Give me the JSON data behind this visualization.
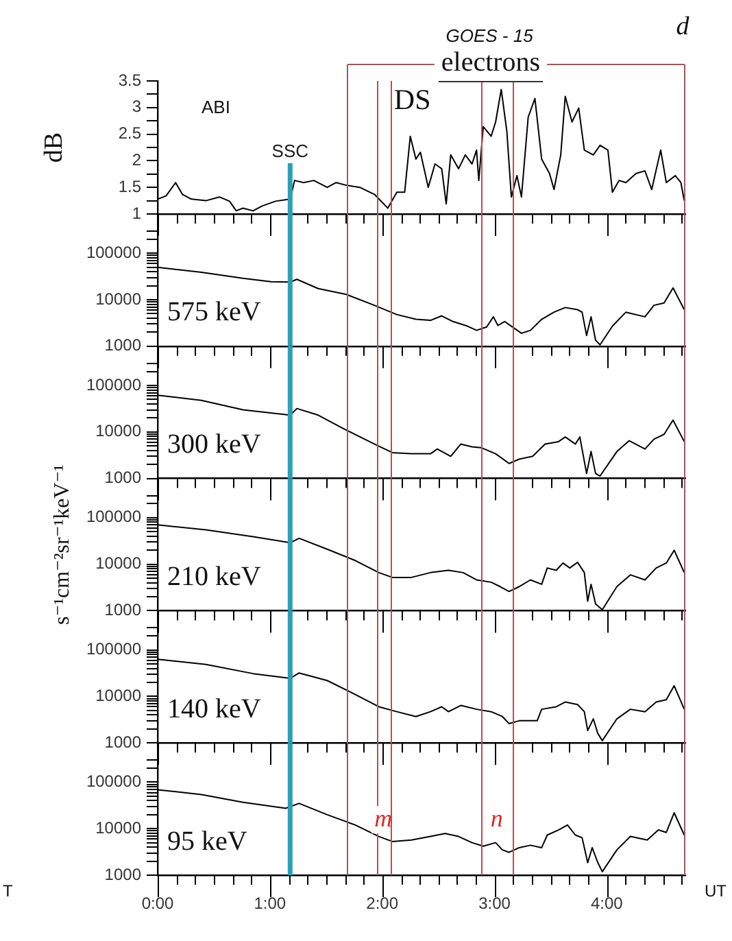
{
  "chart_data": [
    {
      "type": "line",
      "ylabel": "dB",
      "annotations": [
        "ABI",
        "GOES - 15",
        "electrons",
        "d"
      ],
      "color": "#000000",
      "tick_labels": "y",
      "x": [
        0,
        0.075,
        0.16,
        0.22,
        0.3,
        0.43,
        0.55,
        0.64,
        0.7,
        0.76,
        0.85,
        0.93,
        1.05,
        1.18,
        1.22,
        1.3,
        1.39,
        1.51,
        1.59,
        1.68,
        1.8,
        1.93,
        2.05,
        2.13,
        2.2,
        2.25,
        2.3,
        2.34,
        2.41,
        2.47,
        2.53,
        2.57,
        2.61,
        2.68,
        2.74,
        2.8,
        2.84,
        2.86,
        2.9,
        2.97,
        3.01,
        3.06,
        3.11,
        3.15,
        3.2,
        3.24,
        3.3,
        3.36,
        3.42,
        3.49,
        3.53,
        3.59,
        3.63,
        3.69,
        3.75,
        3.8,
        3.88,
        3.94,
        4.01,
        4.05,
        4.11,
        4.17,
        4.26,
        4.34,
        4.4,
        4.48,
        4.53,
        4.61,
        4.66,
        4.69
      ],
      "values": [
        1.28,
        1.34,
        1.59,
        1.37,
        1.28,
        1.25,
        1.32,
        1.24,
        1.06,
        1.11,
        1.06,
        1.15,
        1.24,
        1.28,
        1.63,
        1.59,
        1.63,
        1.5,
        1.59,
        1.54,
        1.5,
        1.37,
        1.11,
        1.41,
        1.41,
        2.46,
        2.03,
        2.16,
        1.5,
        1.94,
        1.85,
        1.19,
        2.11,
        1.85,
        2.11,
        1.94,
        2.2,
        1.63,
        2.64,
        2.46,
        2.73,
        3.34,
        2.55,
        1.32,
        1.72,
        1.32,
        2.82,
        3.17,
        2.03,
        1.76,
        1.46,
        2.11,
        3.21,
        2.73,
        2.99,
        2.2,
        2.11,
        2.29,
        2.2,
        1.41,
        1.63,
        1.59,
        1.76,
        1.81,
        1.46,
        2.2,
        1.59,
        1.72,
        1.59,
        1.25
      ],
      "xlim": [
        0,
        4.7
      ],
      "xticks": [
        {
          "value": 0,
          "label": null
        },
        {
          "value": 0.167,
          "label": null
        },
        {
          "value": 0.333,
          "label": null
        },
        {
          "value": 0.5,
          "label": null
        },
        {
          "value": 0.667,
          "label": null
        },
        {
          "value": 0.833,
          "label": null
        },
        {
          "value": 1,
          "label": null
        },
        {
          "value": 1.167,
          "label": null
        },
        {
          "value": 1.333,
          "label": null
        },
        {
          "value": 1.5,
          "label": null
        },
        {
          "value": 1.667,
          "label": null
        },
        {
          "value": 1.833,
          "label": null
        },
        {
          "value": 2,
          "label": null
        },
        {
          "value": 2.167,
          "label": null
        },
        {
          "value": 2.333,
          "label": null
        },
        {
          "value": 2.5,
          "label": null
        },
        {
          "value": 2.667,
          "label": null
        },
        {
          "value": 2.833,
          "label": null
        },
        {
          "value": 3,
          "label": null
        },
        {
          "value": 3.167,
          "label": null
        },
        {
          "value": 3.333,
          "label": null
        },
        {
          "value": 3.5,
          "label": null
        },
        {
          "value": 3.667,
          "label": null
        },
        {
          "value": 3.833,
          "label": null
        },
        {
          "value": 4,
          "label": null
        },
        {
          "value": 4.167,
          "label": null
        },
        {
          "value": 4.333,
          "label": null
        },
        {
          "value": 4.5,
          "label": null
        },
        {
          "value": 4.667,
          "label": null
        }
      ],
      "ylim": [
        1,
        3.5
      ],
      "yticks": [
        1,
        {
          "value": 1.25,
          "label": null
        },
        1.5,
        {
          "value": 1.75,
          "label": null
        },
        2,
        {
          "value": 2.25,
          "label": null
        },
        2.5,
        {
          "value": 2.75,
          "label": null
        },
        3,
        {
          "value": 3.25,
          "label": null
        },
        3.5
      ],
      "ref_lines": [
        {
          "axis": "x",
          "value": 1.18,
          "label": "SSC",
          "color": "#2aa0b8"
        },
        {
          "axis": "x",
          "value": 1.69,
          "label": "DS",
          "color": "#a05a5a"
        },
        {
          "axis": "x",
          "value": 1.95,
          "color": "#c84848"
        },
        {
          "axis": "x",
          "value": 2.07,
          "color": "#c84848"
        },
        {
          "axis": "x",
          "value": 2.88,
          "color": "#c84848"
        },
        {
          "axis": "x",
          "value": 3.16,
          "color": "#c84848"
        },
        {
          "axis": "x",
          "value": 4.69,
          "color": "#a05a5a"
        }
      ]
    },
    {
      "type": "line",
      "annotations": [
        "575 keV"
      ],
      "color": "#000000",
      "tick_labels": "y",
      "log": true,
      "x": [
        0,
        0.39,
        0.76,
        1.01,
        1.18,
        1.24,
        1.43,
        1.68,
        1.93,
        2.13,
        2.3,
        2.43,
        2.53,
        2.63,
        2.76,
        2.84,
        2.93,
        2.99,
        3.03,
        3.09,
        3.15,
        3.24,
        3.32,
        3.42,
        3.53,
        3.63,
        3.74,
        3.78,
        3.82,
        3.86,
        3.9,
        3.94,
        4.05,
        4.17,
        4.34,
        4.42,
        4.51,
        4.59,
        4.69
      ],
      "values": [
        50000,
        39000,
        29000,
        24500,
        24000,
        27500,
        17400,
        13000,
        7600,
        4800,
        3800,
        3600,
        4500,
        3400,
        2700,
        2200,
        2600,
        4300,
        2800,
        3400,
        2700,
        1900,
        2200,
        3800,
        5400,
        6800,
        6100,
        5400,
        1700,
        4300,
        1350,
        1070,
        2700,
        5400,
        4300,
        7600,
        8500,
        18000,
        6100
      ],
      "xlim": [
        0,
        4.7
      ],
      "xticks": [
        {
          "value": 0,
          "label": null
        },
        {
          "value": 0.167,
          "label": null
        },
        {
          "value": 0.333,
          "label": null
        },
        {
          "value": 0.5,
          "label": null
        },
        {
          "value": 0.667,
          "label": null
        },
        {
          "value": 0.833,
          "label": null
        },
        {
          "value": 1,
          "label": null
        },
        {
          "value": 1.167,
          "label": null
        },
        {
          "value": 1.333,
          "label": null
        },
        {
          "value": 1.5,
          "label": null
        },
        {
          "value": 1.667,
          "label": null
        },
        {
          "value": 1.833,
          "label": null
        },
        {
          "value": 2,
          "label": null
        },
        {
          "value": 2.167,
          "label": null
        },
        {
          "value": 2.333,
          "label": null
        },
        {
          "value": 2.5,
          "label": null
        },
        {
          "value": 2.667,
          "label": null
        },
        {
          "value": 2.833,
          "label": null
        },
        {
          "value": 3,
          "label": null
        },
        {
          "value": 3.167,
          "label": null
        },
        {
          "value": 3.333,
          "label": null
        },
        {
          "value": 3.5,
          "label": null
        },
        {
          "value": 3.667,
          "label": null
        },
        {
          "value": 3.833,
          "label": null
        },
        {
          "value": 4,
          "label": null
        },
        {
          "value": 4.167,
          "label": null
        },
        {
          "value": 4.333,
          "label": null
        },
        {
          "value": 4.5,
          "label": null
        },
        {
          "value": 4.667,
          "label": null
        }
      ],
      "ylim": [
        1000,
        700000
      ],
      "yticks": [
        1000,
        {
          "value": 2000,
          "label": null
        },
        {
          "value": 3000,
          "label": null
        },
        {
          "value": 4000,
          "label": null
        },
        {
          "value": 5000,
          "label": null
        },
        {
          "value": 6000,
          "label": null
        },
        {
          "value": 7000,
          "label": null
        },
        {
          "value": 8000,
          "label": null
        },
        {
          "value": 9000,
          "label": null
        },
        10000,
        {
          "value": 20000,
          "label": null
        },
        {
          "value": 30000,
          "label": null
        },
        {
          "value": 40000,
          "label": null
        },
        {
          "value": 50000,
          "label": null
        },
        {
          "value": 60000,
          "label": null
        },
        {
          "value": 70000,
          "label": null
        },
        {
          "value": 80000,
          "label": null
        },
        {
          "value": 90000,
          "label": null
        },
        100000,
        {
          "value": 200000,
          "label": null
        },
        {
          "value": 300000,
          "label": null
        }
      ],
      "ref_lines": [
        {
          "axis": "x",
          "value": 1.18,
          "color": "#2aa0b8"
        },
        {
          "axis": "x",
          "value": 1.69,
          "color": "#a05a5a"
        },
        {
          "axis": "x",
          "value": 1.95,
          "color": "#c84848"
        },
        {
          "axis": "x",
          "value": 2.07,
          "color": "#c84848"
        },
        {
          "axis": "x",
          "value": 2.88,
          "color": "#c84848"
        },
        {
          "axis": "x",
          "value": 3.16,
          "color": "#c84848"
        },
        {
          "axis": "x",
          "value": 4.69,
          "color": "#a05a5a"
        }
      ]
    },
    {
      "type": "line",
      "annotations": [
        "300 keV"
      ],
      "color": "#000000",
      "tick_labels": "y",
      "log": true,
      "x": [
        0,
        0.39,
        0.76,
        1.18,
        1.24,
        1.43,
        1.68,
        1.93,
        2.09,
        2.26,
        2.43,
        2.49,
        2.61,
        2.7,
        2.8,
        2.88,
        3.01,
        3.13,
        3.22,
        3.34,
        3.45,
        3.57,
        3.63,
        3.72,
        3.76,
        3.82,
        3.86,
        3.9,
        3.94,
        4.09,
        4.2,
        4.34,
        4.42,
        4.51,
        4.59,
        4.69
      ],
      "values": [
        62000,
        48000,
        30000,
        23000,
        32000,
        23000,
        11000,
        5500,
        3600,
        3400,
        3400,
        4300,
        3000,
        5500,
        4800,
        4600,
        3400,
        2100,
        2600,
        3000,
        5500,
        6200,
        7800,
        5500,
        7800,
        1280,
        3800,
        1280,
        1130,
        3800,
        6500,
        4300,
        7000,
        8900,
        18000,
        6200
      ],
      "xlim": [
        0,
        4.7
      ],
      "xticks": [
        {
          "value": 0,
          "label": null
        },
        {
          "value": 0.167,
          "label": null
        },
        {
          "value": 0.333,
          "label": null
        },
        {
          "value": 0.5,
          "label": null
        },
        {
          "value": 0.667,
          "label": null
        },
        {
          "value": 0.833,
          "label": null
        },
        {
          "value": 1,
          "label": null
        },
        {
          "value": 1.167,
          "label": null
        },
        {
          "value": 1.333,
          "label": null
        },
        {
          "value": 1.5,
          "label": null
        },
        {
          "value": 1.667,
          "label": null
        },
        {
          "value": 1.833,
          "label": null
        },
        {
          "value": 2,
          "label": null
        },
        {
          "value": 2.167,
          "label": null
        },
        {
          "value": 2.333,
          "label": null
        },
        {
          "value": 2.5,
          "label": null
        },
        {
          "value": 2.667,
          "label": null
        },
        {
          "value": 2.833,
          "label": null
        },
        {
          "value": 3,
          "label": null
        },
        {
          "value": 3.167,
          "label": null
        },
        {
          "value": 3.333,
          "label": null
        },
        {
          "value": 3.5,
          "label": null
        },
        {
          "value": 3.667,
          "label": null
        },
        {
          "value": 3.833,
          "label": null
        },
        {
          "value": 4,
          "label": null
        },
        {
          "value": 4.167,
          "label": null
        },
        {
          "value": 4.333,
          "label": null
        },
        {
          "value": 4.5,
          "label": null
        },
        {
          "value": 4.667,
          "label": null
        }
      ],
      "ylim": [
        1000,
        700000
      ],
      "yticks": [
        1000,
        {
          "value": 2000,
          "label": null
        },
        {
          "value": 3000,
          "label": null
        },
        {
          "value": 4000,
          "label": null
        },
        {
          "value": 5000,
          "label": null
        },
        {
          "value": 6000,
          "label": null
        },
        {
          "value": 7000,
          "label": null
        },
        {
          "value": 8000,
          "label": null
        },
        {
          "value": 9000,
          "label": null
        },
        10000,
        {
          "value": 20000,
          "label": null
        },
        {
          "value": 30000,
          "label": null
        },
        {
          "value": 40000,
          "label": null
        },
        {
          "value": 50000,
          "label": null
        },
        {
          "value": 60000,
          "label": null
        },
        {
          "value": 70000,
          "label": null
        },
        {
          "value": 80000,
          "label": null
        },
        {
          "value": 90000,
          "label": null
        },
        100000,
        {
          "value": 200000,
          "label": null
        },
        {
          "value": 300000,
          "label": null
        }
      ],
      "ref_lines": [
        {
          "axis": "x",
          "value": 1.18,
          "color": "#2aa0b8"
        },
        {
          "axis": "x",
          "value": 1.69,
          "color": "#a05a5a"
        },
        {
          "axis": "x",
          "value": 1.95,
          "color": "#c84848"
        },
        {
          "axis": "x",
          "value": 2.07,
          "color": "#c84848"
        },
        {
          "axis": "x",
          "value": 2.88,
          "color": "#c84848"
        },
        {
          "axis": "x",
          "value": 3.16,
          "color": "#c84848"
        },
        {
          "axis": "x",
          "value": 4.69,
          "color": "#a05a5a"
        }
      ]
    },
    {
      "type": "line",
      "ylabel": "s⁻¹cm⁻²sr⁻¹keV⁻¹",
      "annotations": [
        "210 keV"
      ],
      "color": "#000000",
      "tick_labels": "y",
      "log": true,
      "x": [
        0,
        0.43,
        0.85,
        1.18,
        1.26,
        1.51,
        1.76,
        1.97,
        2.09,
        2.26,
        2.43,
        2.59,
        2.72,
        2.84,
        2.97,
        3.05,
        3.13,
        3.22,
        3.32,
        3.42,
        3.47,
        3.55,
        3.61,
        3.67,
        3.74,
        3.8,
        3.83,
        3.86,
        3.9,
        3.96,
        4.09,
        4.21,
        4.34,
        4.44,
        4.53,
        4.6,
        4.69
      ],
      "values": [
        70000,
        55000,
        39000,
        29000,
        36000,
        21000,
        12000,
        6600,
        5200,
        5200,
        6600,
        7400,
        6600,
        4600,
        4100,
        3300,
        2600,
        3300,
        4600,
        3700,
        8300,
        7400,
        10600,
        8300,
        11000,
        6600,
        1600,
        3700,
        1400,
        1050,
        3300,
        5900,
        4600,
        8300,
        10600,
        20000,
        6600
      ],
      "xlim": [
        0,
        4.7
      ],
      "xticks": [
        {
          "value": 0,
          "label": null
        },
        {
          "value": 0.167,
          "label": null
        },
        {
          "value": 0.333,
          "label": null
        },
        {
          "value": 0.5,
          "label": null
        },
        {
          "value": 0.667,
          "label": null
        },
        {
          "value": 0.833,
          "label": null
        },
        {
          "value": 1,
          "label": null
        },
        {
          "value": 1.167,
          "label": null
        },
        {
          "value": 1.333,
          "label": null
        },
        {
          "value": 1.5,
          "label": null
        },
        {
          "value": 1.667,
          "label": null
        },
        {
          "value": 1.833,
          "label": null
        },
        {
          "value": 2,
          "label": null
        },
        {
          "value": 2.167,
          "label": null
        },
        {
          "value": 2.333,
          "label": null
        },
        {
          "value": 2.5,
          "label": null
        },
        {
          "value": 2.667,
          "label": null
        },
        {
          "value": 2.833,
          "label": null
        },
        {
          "value": 3,
          "label": null
        },
        {
          "value": 3.167,
          "label": null
        },
        {
          "value": 3.333,
          "label": null
        },
        {
          "value": 3.5,
          "label": null
        },
        {
          "value": 3.667,
          "label": null
        },
        {
          "value": 3.833,
          "label": null
        },
        {
          "value": 4,
          "label": null
        },
        {
          "value": 4.167,
          "label": null
        },
        {
          "value": 4.333,
          "label": null
        },
        {
          "value": 4.5,
          "label": null
        },
        {
          "value": 4.667,
          "label": null
        }
      ],
      "ylim": [
        1000,
        700000
      ],
      "yticks": [
        1000,
        {
          "value": 2000,
          "label": null
        },
        {
          "value": 3000,
          "label": null
        },
        {
          "value": 4000,
          "label": null
        },
        {
          "value": 5000,
          "label": null
        },
        {
          "value": 6000,
          "label": null
        },
        {
          "value": 7000,
          "label": null
        },
        {
          "value": 8000,
          "label": null
        },
        {
          "value": 9000,
          "label": null
        },
        10000,
        {
          "value": 20000,
          "label": null
        },
        {
          "value": 30000,
          "label": null
        },
        {
          "value": 40000,
          "label": null
        },
        {
          "value": 50000,
          "label": null
        },
        {
          "value": 60000,
          "label": null
        },
        {
          "value": 70000,
          "label": null
        },
        {
          "value": 80000,
          "label": null
        },
        {
          "value": 90000,
          "label": null
        },
        100000,
        {
          "value": 200000,
          "label": null
        },
        {
          "value": 300000,
          "label": null
        }
      ],
      "ref_lines": [
        {
          "axis": "x",
          "value": 1.18,
          "color": "#2aa0b8"
        },
        {
          "axis": "x",
          "value": 1.69,
          "color": "#a05a5a"
        },
        {
          "axis": "x",
          "value": 1.95,
          "color": "#c84848"
        },
        {
          "axis": "x",
          "value": 2.07,
          "color": "#c84848"
        },
        {
          "axis": "x",
          "value": 2.88,
          "color": "#c84848"
        },
        {
          "axis": "x",
          "value": 3.16,
          "color": "#c84848"
        },
        {
          "axis": "x",
          "value": 4.69,
          "color": "#a05a5a"
        }
      ]
    },
    {
      "type": "line",
      "annotations": [
        "140 keV"
      ],
      "color": "#000000",
      "tick_labels": "y",
      "log": true,
      "x": [
        0,
        0.43,
        0.85,
        1.18,
        1.26,
        1.51,
        1.76,
        1.97,
        2.13,
        2.3,
        2.43,
        2.53,
        2.59,
        2.7,
        2.84,
        2.97,
        3.07,
        3.13,
        3.22,
        3.38,
        3.42,
        3.55,
        3.63,
        3.74,
        3.8,
        3.83,
        3.88,
        3.92,
        3.96,
        4.09,
        4.21,
        4.34,
        4.44,
        4.53,
        4.6,
        4.69
      ],
      "values": [
        63000,
        49000,
        31000,
        24500,
        32000,
        22000,
        11000,
        6000,
        4700,
        3700,
        4700,
        6000,
        4700,
        6400,
        5300,
        4700,
        3700,
        2600,
        3000,
        3000,
        5300,
        6000,
        7600,
        6700,
        4700,
        1850,
        3300,
        1600,
        1120,
        3300,
        5300,
        4700,
        7600,
        8500,
        17000,
        5300
      ],
      "xlim": [
        0,
        4.7
      ],
      "xticks": [
        {
          "value": 0,
          "label": null
        },
        {
          "value": 0.167,
          "label": null
        },
        {
          "value": 0.333,
          "label": null
        },
        {
          "value": 0.5,
          "label": null
        },
        {
          "value": 0.667,
          "label": null
        },
        {
          "value": 0.833,
          "label": null
        },
        {
          "value": 1,
          "label": null
        },
        {
          "value": 1.167,
          "label": null
        },
        {
          "value": 1.333,
          "label": null
        },
        {
          "value": 1.5,
          "label": null
        },
        {
          "value": 1.667,
          "label": null
        },
        {
          "value": 1.833,
          "label": null
        },
        {
          "value": 2,
          "label": null
        },
        {
          "value": 2.167,
          "label": null
        },
        {
          "value": 2.333,
          "label": null
        },
        {
          "value": 2.5,
          "label": null
        },
        {
          "value": 2.667,
          "label": null
        },
        {
          "value": 2.833,
          "label": null
        },
        {
          "value": 3,
          "label": null
        },
        {
          "value": 3.167,
          "label": null
        },
        {
          "value": 3.333,
          "label": null
        },
        {
          "value": 3.5,
          "label": null
        },
        {
          "value": 3.667,
          "label": null
        },
        {
          "value": 3.833,
          "label": null
        },
        {
          "value": 4,
          "label": null
        },
        {
          "value": 4.167,
          "label": null
        },
        {
          "value": 4.333,
          "label": null
        },
        {
          "value": 4.5,
          "label": null
        },
        {
          "value": 4.667,
          "label": null
        }
      ],
      "ylim": [
        1000,
        700000
      ],
      "yticks": [
        1000,
        {
          "value": 2000,
          "label": null
        },
        {
          "value": 3000,
          "label": null
        },
        {
          "value": 4000,
          "label": null
        },
        {
          "value": 5000,
          "label": null
        },
        {
          "value": 6000,
          "label": null
        },
        {
          "value": 7000,
          "label": null
        },
        {
          "value": 8000,
          "label": null
        },
        {
          "value": 9000,
          "label": null
        },
        10000,
        {
          "value": 20000,
          "label": null
        },
        {
          "value": 30000,
          "label": null
        },
        {
          "value": 40000,
          "label": null
        },
        {
          "value": 50000,
          "label": null
        },
        {
          "value": 60000,
          "label": null
        },
        {
          "value": 70000,
          "label": null
        },
        {
          "value": 80000,
          "label": null
        },
        {
          "value": 90000,
          "label": null
        },
        100000,
        {
          "value": 200000,
          "label": null
        },
        {
          "value": 300000,
          "label": null
        }
      ],
      "ref_lines": [
        {
          "axis": "x",
          "value": 1.18,
          "color": "#2aa0b8"
        },
        {
          "axis": "x",
          "value": 1.69,
          "color": "#a05a5a"
        },
        {
          "axis": "x",
          "value": 1.95,
          "color": "#c84848"
        },
        {
          "axis": "x",
          "value": 2.07,
          "color": "#c84848"
        },
        {
          "axis": "x",
          "value": 2.88,
          "color": "#c84848"
        },
        {
          "axis": "x",
          "value": 3.16,
          "color": "#c84848"
        },
        {
          "axis": "x",
          "value": 4.69,
          "color": "#a05a5a"
        }
      ]
    },
    {
      "type": "line",
      "xlabel": "UT",
      "annotations": [
        "95 keV",
        "T"
      ],
      "color": "#000000",
      "log": true,
      "x": [
        0,
        0.39,
        0.76,
        1.14,
        1.26,
        1.51,
        1.76,
        1.97,
        2.09,
        2.26,
        2.43,
        2.56,
        2.68,
        2.8,
        2.9,
        3.01,
        3.07,
        3.13,
        3.22,
        3.32,
        3.42,
        3.47,
        3.57,
        3.65,
        3.72,
        3.78,
        3.83,
        3.87,
        3.92,
        3.96,
        4.09,
        4.21,
        4.36,
        4.46,
        4.53,
        4.6,
        4.69
      ],
      "values": [
        69000,
        54000,
        37000,
        27500,
        35000,
        20000,
        12000,
        6800,
        5300,
        5700,
        6800,
        7900,
        6800,
        5000,
        4200,
        5000,
        3500,
        3100,
        3900,
        4400,
        3900,
        7300,
        9400,
        12000,
        7300,
        6400,
        1860,
        3900,
        1860,
        1190,
        3500,
        6800,
        5700,
        9400,
        8300,
        22000,
        7300
      ],
      "xlim": [
        0,
        4.7
      ],
      "xticks": [
        {
          "value": 0,
          "label": "0:00"
        },
        {
          "value": 0.167,
          "label": null
        },
        {
          "value": 0.333,
          "label": null
        },
        {
          "value": 0.5,
          "label": null
        },
        {
          "value": 0.667,
          "label": null
        },
        {
          "value": 0.833,
          "label": null
        },
        {
          "value": 1,
          "label": "1:00"
        },
        {
          "value": 1.167,
          "label": null
        },
        {
          "value": 1.333,
          "label": null
        },
        {
          "value": 1.5,
          "label": null
        },
        {
          "value": 1.667,
          "label": null
        },
        {
          "value": 1.833,
          "label": null
        },
        {
          "value": 2,
          "label": "2:00"
        },
        {
          "value": 2.167,
          "label": null
        },
        {
          "value": 2.333,
          "label": null
        },
        {
          "value": 2.5,
          "label": null
        },
        {
          "value": 2.667,
          "label": null
        },
        {
          "value": 2.833,
          "label": null
        },
        {
          "value": 3,
          "label": "3:00"
        },
        {
          "value": 3.167,
          "label": null
        },
        {
          "value": 3.333,
          "label": null
        },
        {
          "value": 3.5,
          "label": null
        },
        {
          "value": 3.667,
          "label": null
        },
        {
          "value": 3.833,
          "label": null
        },
        {
          "value": 4,
          "label": "4:00"
        },
        {
          "value": 4.167,
          "label": null
        },
        {
          "value": 4.333,
          "label": null
        },
        {
          "value": 4.5,
          "label": null
        },
        {
          "value": 4.667,
          "label": null
        }
      ],
      "ylim": [
        1000,
        700000
      ],
      "yticks": [
        1000,
        {
          "value": 2000,
          "label": null
        },
        {
          "value": 3000,
          "label": null
        },
        {
          "value": 4000,
          "label": null
        },
        {
          "value": 5000,
          "label": null
        },
        {
          "value": 6000,
          "label": null
        },
        {
          "value": 7000,
          "label": null
        },
        {
          "value": 8000,
          "label": null
        },
        {
          "value": 9000,
          "label": null
        },
        10000,
        {
          "value": 20000,
          "label": null
        },
        {
          "value": 30000,
          "label": null
        },
        {
          "value": 40000,
          "label": null
        },
        {
          "value": 50000,
          "label": null
        },
        {
          "value": 60000,
          "label": null
        },
        {
          "value": 70000,
          "label": null
        },
        {
          "value": 80000,
          "label": null
        },
        {
          "value": 90000,
          "label": null
        },
        100000,
        {
          "value": 200000,
          "label": null
        },
        {
          "value": 300000,
          "label": null
        }
      ],
      "ref_lines": [
        {
          "axis": "x",
          "value": 1.18,
          "color": "#2aa0b8"
        },
        {
          "axis": "x",
          "value": 1.69,
          "color": "#a05a5a"
        },
        {
          "axis": "x",
          "value": 1.95,
          "label": "m",
          "color": "#c84848"
        },
        {
          "axis": "x",
          "value": 2.07,
          "color": "#c84848"
        },
        {
          "axis": "x",
          "value": 2.88,
          "label": "n",
          "color": "#c84848"
        },
        {
          "axis": "x",
          "value": 3.16,
          "color": "#c84848"
        },
        {
          "axis": "x",
          "value": 4.69,
          "color": "#a05a5a"
        }
      ]
    }
  ]
}
